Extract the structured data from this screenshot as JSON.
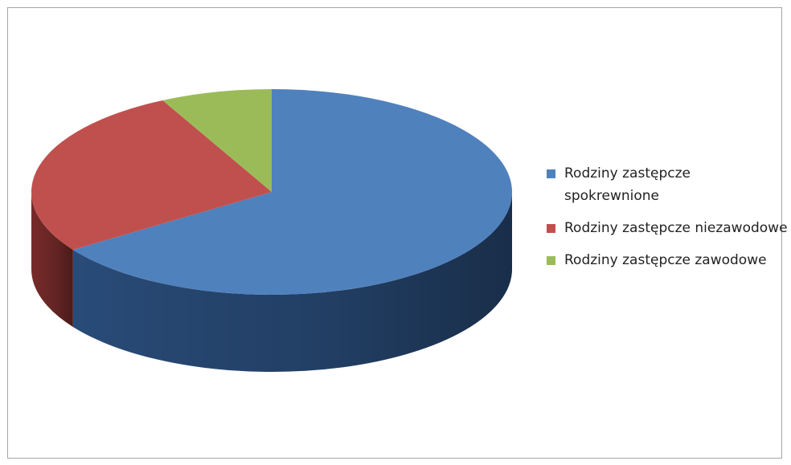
{
  "chart_data": {
    "type": "pie",
    "three_d": true,
    "labels": [
      "Rodziny zastępcze spokrewnione",
      "Rodziny zastępcze niezawodowe",
      "Rodziny zastępcze zawodowe"
    ],
    "values": [
      65.5,
      27.0,
      7.5
    ],
    "colors": [
      "#4F81BD",
      "#C0504D",
      "#9BBB59"
    ],
    "side_colors": [
      "#2B4F7E",
      "#7E2E2C",
      "#5E7A35"
    ],
    "legend_position": "right"
  }
}
